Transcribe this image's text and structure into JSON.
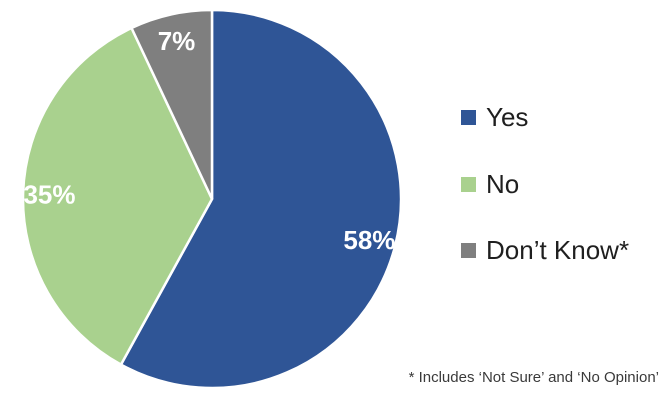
{
  "chart_data": {
    "type": "pie",
    "title": "",
    "start_angle_deg": 0,
    "direction": "clockwise",
    "legend_position": "right",
    "background": "#FFFFFF",
    "slice_label_color": "#FFFFFF",
    "slice_border_color": "#FFFFFF",
    "slices": [
      {
        "label": "Yes",
        "value": 58,
        "display": "58%",
        "color": "#2F5596"
      },
      {
        "label": "No",
        "value": 35,
        "display": "35%",
        "color": "#A9D18E"
      },
      {
        "label": "Don’t Know*",
        "value": 7,
        "display": "7%",
        "color": "#7F7F7F"
      }
    ]
  },
  "footnote": {
    "text": "* Includes ‘Not Sure’ and ‘No Opinion’"
  }
}
